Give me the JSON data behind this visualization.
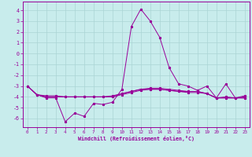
{
  "xlabel": "Windchill (Refroidissement éolien,°C)",
  "bg_color": "#c8ecec",
  "grid_color": "#aad4d4",
  "line_color": "#990099",
  "xlim": [
    -0.5,
    23.5
  ],
  "ylim": [
    -6.8,
    4.8
  ],
  "yticks": [
    -6,
    -5,
    -4,
    -3,
    -2,
    -1,
    0,
    1,
    2,
    3,
    4
  ],
  "xticks": [
    0,
    1,
    2,
    3,
    4,
    5,
    6,
    7,
    8,
    9,
    10,
    11,
    12,
    13,
    14,
    15,
    16,
    17,
    18,
    19,
    20,
    21,
    22,
    23
  ],
  "line1_x": [
    0,
    1,
    2,
    3,
    4,
    5,
    6,
    7,
    8,
    9,
    10,
    11,
    12,
    13,
    14,
    15,
    16,
    17,
    18,
    19,
    20,
    21,
    22,
    23
  ],
  "line1_y": [
    -3.0,
    -3.8,
    -4.1,
    -4.1,
    -6.3,
    -5.5,
    -5.8,
    -4.6,
    -4.7,
    -4.5,
    -3.3,
    2.5,
    4.1,
    3.0,
    1.5,
    -1.3,
    -2.8,
    -3.0,
    -3.4,
    -3.0,
    -4.1,
    -2.8,
    -4.1,
    -3.9
  ],
  "line2_x": [
    0,
    1,
    2,
    3,
    4,
    5,
    6,
    7,
    8,
    9,
    10,
    11,
    12,
    13,
    14,
    15,
    16,
    17,
    18,
    19,
    20,
    21,
    22,
    23
  ],
  "line2_y": [
    -3.0,
    -3.8,
    -3.9,
    -3.9,
    -4.0,
    -4.0,
    -4.0,
    -4.0,
    -4.0,
    -4.0,
    -3.7,
    -3.5,
    -3.3,
    -3.3,
    -3.3,
    -3.4,
    -3.5,
    -3.6,
    -3.6,
    -3.7,
    -4.1,
    -4.1,
    -4.1,
    -4.1
  ],
  "line3_x": [
    0,
    1,
    2,
    3,
    4,
    5,
    6,
    7,
    8,
    9,
    10,
    11,
    12,
    13,
    14,
    15,
    16,
    17,
    18,
    19,
    20,
    21,
    22,
    23
  ],
  "line3_y": [
    -3.0,
    -3.8,
    -4.0,
    -4.0,
    -4.0,
    -4.0,
    -4.0,
    -4.0,
    -4.0,
    -3.9,
    -3.7,
    -3.5,
    -3.3,
    -3.2,
    -3.2,
    -3.3,
    -3.4,
    -3.5,
    -3.5,
    -3.7,
    -4.1,
    -4.0,
    -4.1,
    -4.0
  ],
  "line4_x": [
    0,
    1,
    2,
    3,
    4,
    5,
    6,
    7,
    8,
    9,
    10,
    11,
    12,
    13,
    14,
    15,
    16,
    17,
    18,
    19,
    20,
    21,
    22,
    23
  ],
  "line4_y": [
    -3.0,
    -3.8,
    -4.0,
    -4.0,
    -4.0,
    -4.0,
    -4.0,
    -4.0,
    -4.0,
    -4.0,
    -3.8,
    -3.6,
    -3.4,
    -3.3,
    -3.3,
    -3.4,
    -3.5,
    -3.5,
    -3.5,
    -3.7,
    -4.1,
    -4.1,
    -4.1,
    -4.1
  ]
}
